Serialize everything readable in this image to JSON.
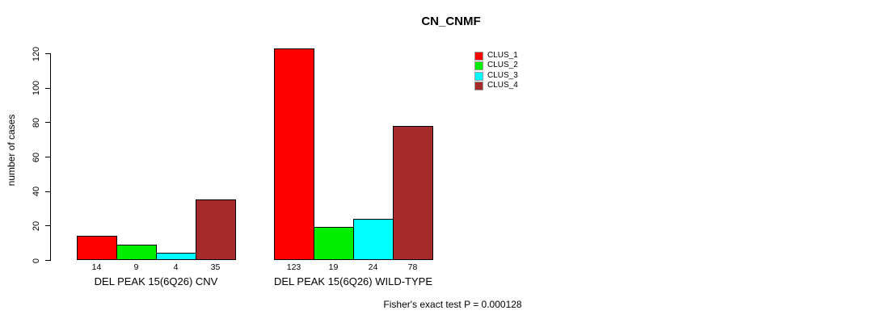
{
  "page": {
    "background": "#ffffff"
  },
  "chart_data": {
    "type": "bar",
    "title": "CN_CNMF",
    "ylabel": "number of cases",
    "xlabel": "",
    "ylim": [
      0,
      120
    ],
    "yticks": [
      0,
      20,
      40,
      60,
      80,
      100,
      120
    ],
    "grid": false,
    "categories": [
      "DEL PEAK 15(6Q26) CNV",
      "DEL PEAK 15(6Q26) WILD-TYPE"
    ],
    "series": [
      {
        "name": "CLUS_1",
        "color": "#FF0000",
        "values": [
          14,
          123
        ]
      },
      {
        "name": "CLUS_2",
        "color": "#00EE00",
        "values": [
          9,
          19
        ]
      },
      {
        "name": "CLUS_3",
        "color": "#00FFFF",
        "values": [
          4,
          24
        ]
      },
      {
        "name": "CLUS_4",
        "color": "#A52A2A",
        "values": [
          35,
          78
        ]
      }
    ],
    "bar_value_labels": true,
    "legend_position": "top-right",
    "annotation": "Fisher's exact test P = 0.000128"
  }
}
